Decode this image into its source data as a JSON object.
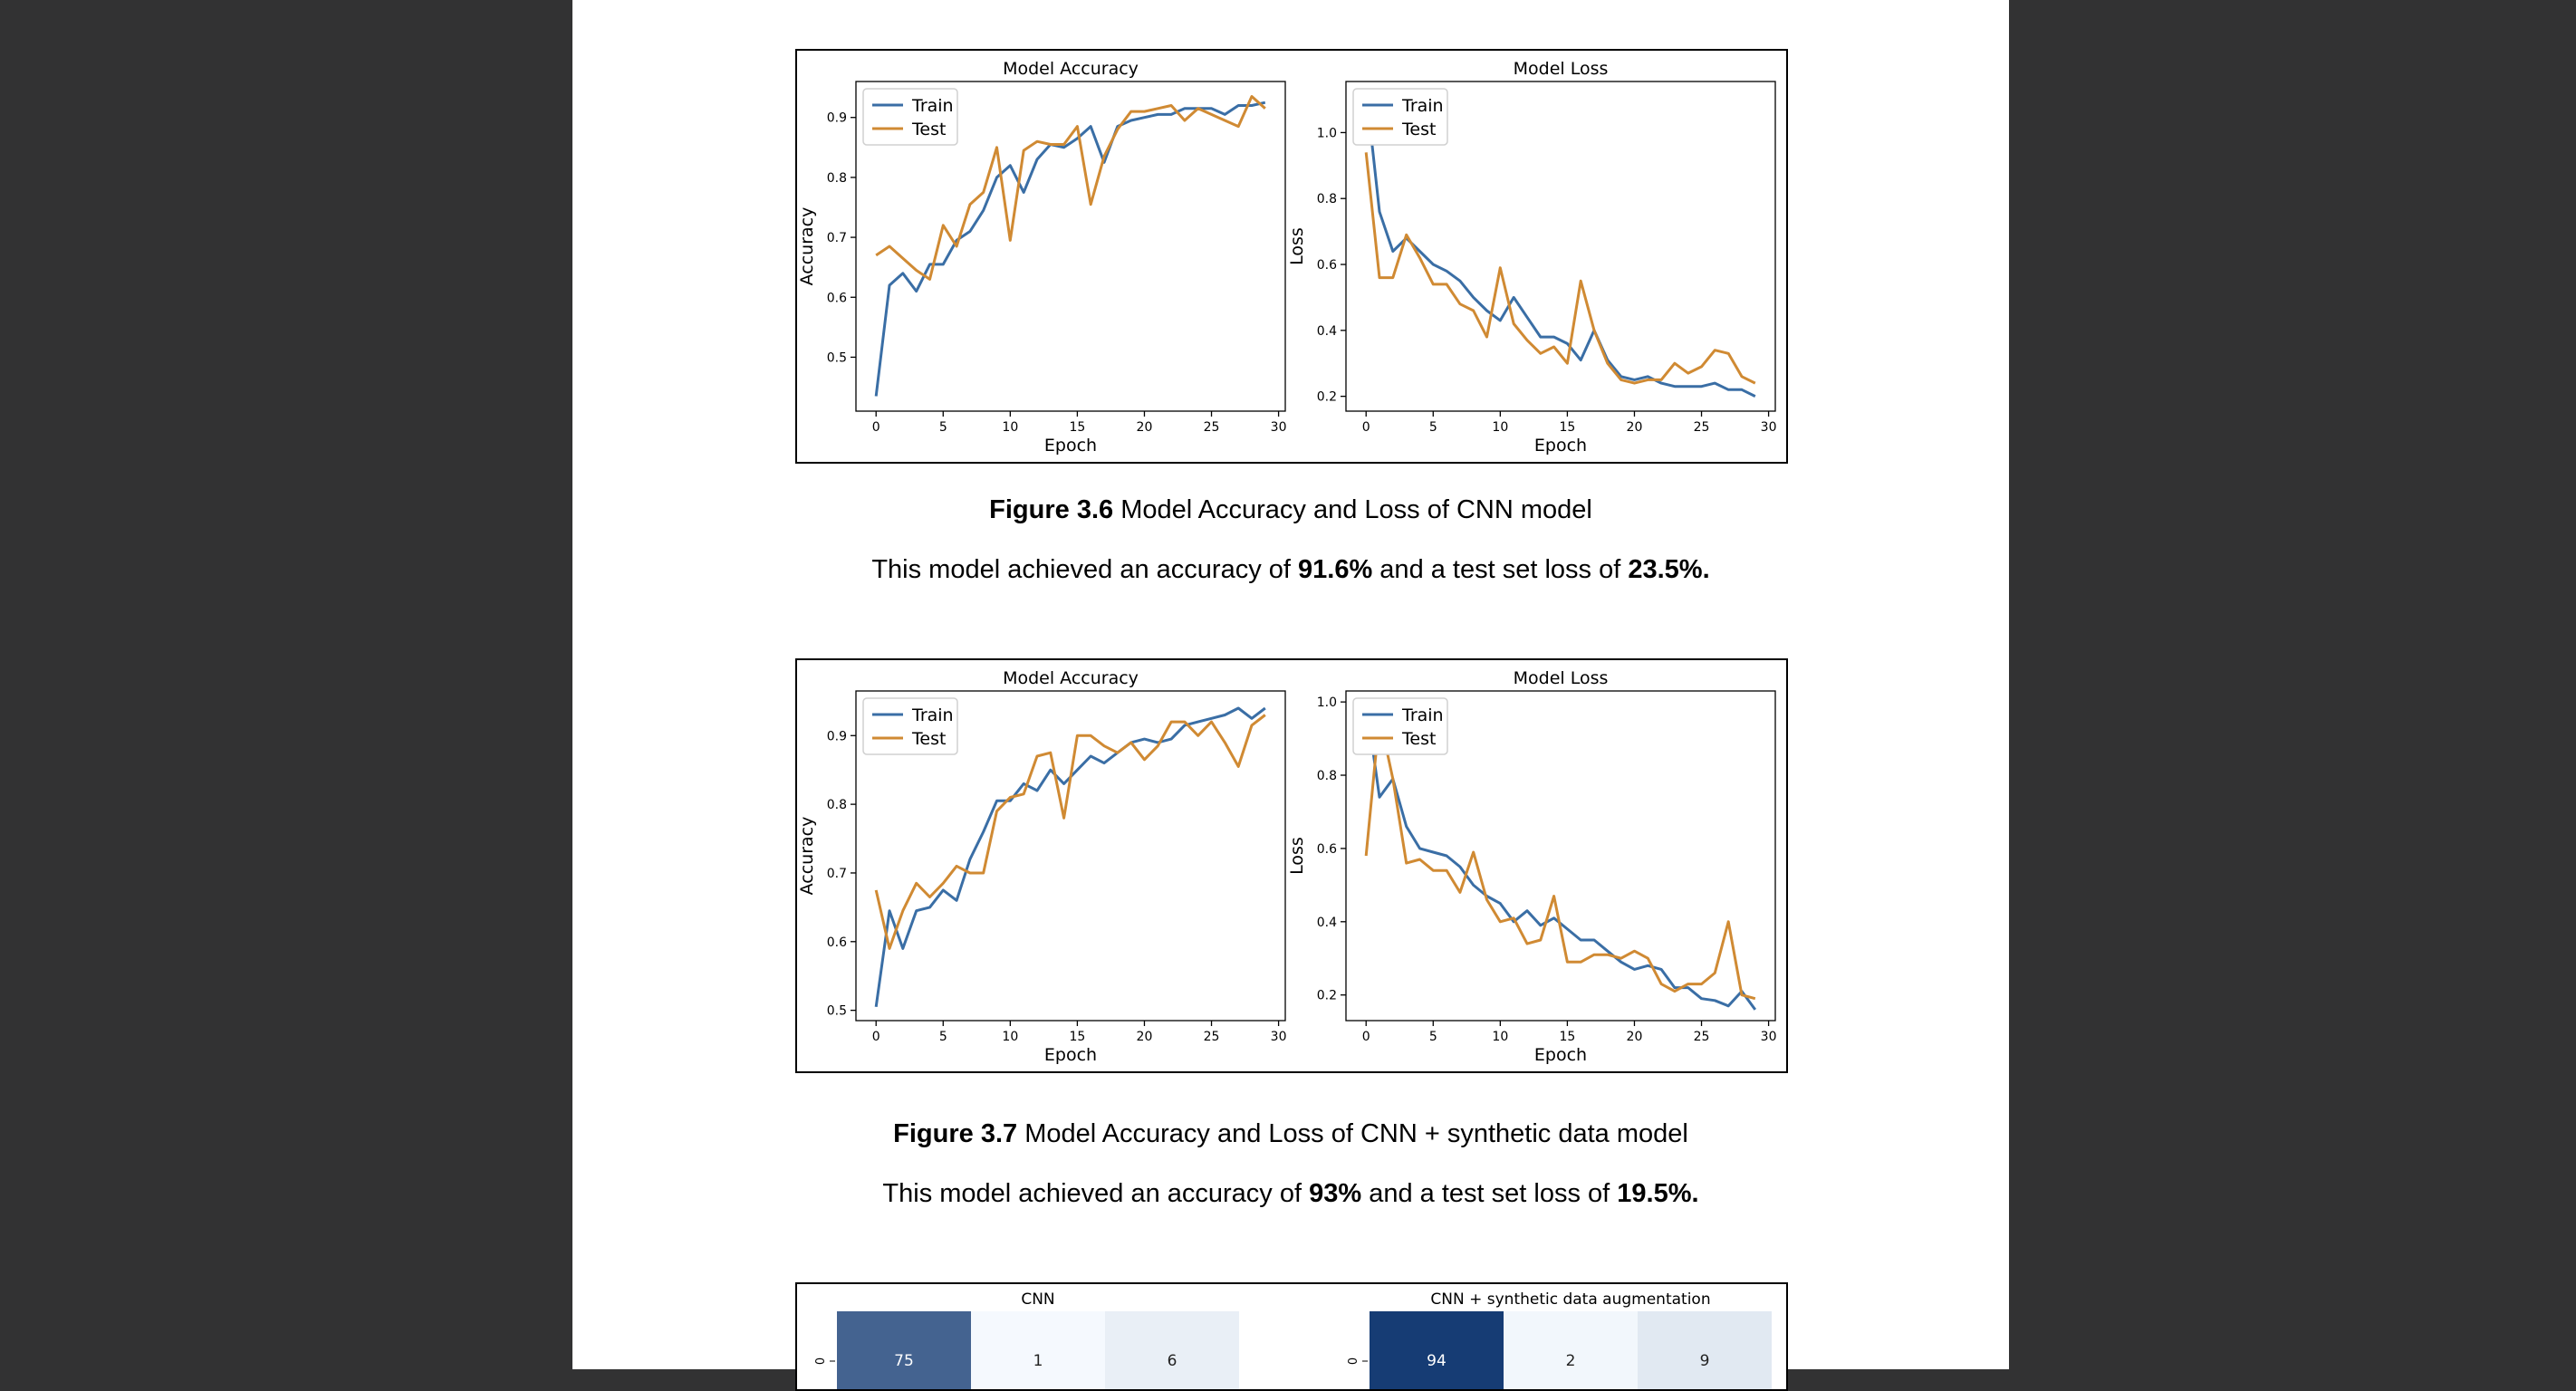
{
  "figures": [
    {
      "caption_bold": "Figure 3.6",
      "caption_text": " Model Accuracy and Loss of CNN model",
      "summary": {
        "pre": "This model achieved an accuracy of ",
        "accuracy": "91.6%",
        "mid": " and a test set loss of ",
        "loss": "23.5%."
      }
    },
    {
      "caption_bold": "Figure 3.7",
      "caption_text": " Model Accuracy and Loss of CNN + synthetic data model",
      "summary": {
        "pre": "This model achieved an accuracy of ",
        "accuracy": "93%",
        "mid": " and a test set loss of ",
        "loss": "19.5%."
      }
    }
  ],
  "chart_data": [
    {
      "type": "line",
      "title": "Model Accuracy",
      "xlabel": "Epoch",
      "ylabel": "Accuracy",
      "xlim": [
        -1.5,
        30.5
      ],
      "ylim": [
        0.41,
        0.96
      ],
      "xticks": [
        0,
        5,
        10,
        15,
        20,
        25,
        30
      ],
      "yticks": [
        0.5,
        0.6,
        0.7,
        0.8,
        0.9
      ],
      "legend": "upper-left",
      "x": [
        0,
        1,
        2,
        3,
        4,
        5,
        6,
        7,
        8,
        9,
        10,
        11,
        12,
        13,
        14,
        15,
        16,
        17,
        18,
        19,
        20,
        21,
        22,
        23,
        24,
        25,
        26,
        27,
        28,
        29
      ],
      "series": [
        {
          "name": "Train",
          "color": "#3a6ea5",
          "values": [
            0.435,
            0.62,
            0.64,
            0.61,
            0.655,
            0.655,
            0.695,
            0.71,
            0.745,
            0.8,
            0.82,
            0.775,
            0.83,
            0.855,
            0.85,
            0.865,
            0.885,
            0.825,
            0.885,
            0.895,
            0.9,
            0.905,
            0.905,
            0.915,
            0.915,
            0.915,
            0.905,
            0.92,
            0.92,
            0.925
          ]
        },
        {
          "name": "Test",
          "color": "#d08a33",
          "values": [
            0.67,
            0.685,
            0.665,
            0.645,
            0.63,
            0.72,
            0.685,
            0.755,
            0.775,
            0.85,
            0.695,
            0.845,
            0.86,
            0.855,
            0.855,
            0.885,
            0.755,
            0.835,
            0.88,
            0.91,
            0.91,
            0.915,
            0.92,
            0.895,
            0.915,
            0.905,
            0.895,
            0.885,
            0.935,
            0.915
          ]
        }
      ]
    },
    {
      "type": "line",
      "title": "Model Loss",
      "xlabel": "Epoch",
      "ylabel": "Loss",
      "xlim": [
        -1.5,
        30.5
      ],
      "ylim": [
        0.155,
        1.155
      ],
      "xticks": [
        0,
        5,
        10,
        15,
        20,
        25,
        30
      ],
      "yticks": [
        0.2,
        0.4,
        0.6,
        0.8,
        1.0
      ],
      "legend": "upper-left",
      "x": [
        0,
        1,
        2,
        3,
        4,
        5,
        6,
        7,
        8,
        9,
        10,
        11,
        12,
        13,
        14,
        15,
        16,
        17,
        18,
        19,
        20,
        21,
        22,
        23,
        24,
        25,
        26,
        27,
        28,
        29
      ],
      "series": [
        {
          "name": "Train",
          "color": "#3a6ea5",
          "values": [
            1.13,
            0.76,
            0.64,
            0.68,
            0.64,
            0.6,
            0.58,
            0.55,
            0.5,
            0.46,
            0.43,
            0.5,
            0.44,
            0.38,
            0.38,
            0.36,
            0.31,
            0.4,
            0.31,
            0.26,
            0.25,
            0.26,
            0.24,
            0.23,
            0.23,
            0.23,
            0.24,
            0.22,
            0.22,
            0.2
          ]
        },
        {
          "name": "Test",
          "color": "#d08a33",
          "values": [
            0.94,
            0.56,
            0.56,
            0.69,
            0.62,
            0.54,
            0.54,
            0.48,
            0.46,
            0.38,
            0.59,
            0.42,
            0.37,
            0.33,
            0.35,
            0.3,
            0.55,
            0.4,
            0.3,
            0.25,
            0.24,
            0.25,
            0.25,
            0.3,
            0.27,
            0.29,
            0.34,
            0.33,
            0.26,
            0.24
          ]
        }
      ]
    },
    {
      "type": "line",
      "title": "Model Accuracy",
      "xlabel": "Epoch",
      "ylabel": "Accuracy",
      "xlim": [
        -1.5,
        30.5
      ],
      "ylim": [
        0.485,
        0.965
      ],
      "xticks": [
        0,
        5,
        10,
        15,
        20,
        25,
        30
      ],
      "yticks": [
        0.5,
        0.6,
        0.7,
        0.8,
        0.9
      ],
      "legend": "upper-left",
      "x": [
        0,
        1,
        2,
        3,
        4,
        5,
        6,
        7,
        8,
        9,
        10,
        11,
        12,
        13,
        14,
        15,
        16,
        17,
        18,
        19,
        20,
        21,
        22,
        23,
        24,
        25,
        26,
        27,
        28,
        29
      ],
      "series": [
        {
          "name": "Train",
          "color": "#3a6ea5",
          "values": [
            0.505,
            0.645,
            0.59,
            0.645,
            0.65,
            0.675,
            0.66,
            0.72,
            0.76,
            0.805,
            0.805,
            0.83,
            0.82,
            0.85,
            0.83,
            0.85,
            0.87,
            0.86,
            0.875,
            0.89,
            0.895,
            0.89,
            0.895,
            0.915,
            0.92,
            0.925,
            0.93,
            0.94,
            0.925,
            0.94
          ]
        },
        {
          "name": "Test",
          "color": "#d08a33",
          "values": [
            0.675,
            0.59,
            0.645,
            0.685,
            0.665,
            0.685,
            0.71,
            0.7,
            0.7,
            0.79,
            0.81,
            0.815,
            0.87,
            0.875,
            0.78,
            0.9,
            0.9,
            0.885,
            0.875,
            0.89,
            0.865,
            0.885,
            0.92,
            0.92,
            0.9,
            0.92,
            0.89,
            0.855,
            0.915,
            0.93
          ]
        }
      ]
    },
    {
      "type": "line",
      "title": "Model Loss",
      "xlabel": "Epoch",
      "ylabel": "Loss",
      "xlim": [
        -1.5,
        30.5
      ],
      "ylim": [
        0.13,
        1.03
      ],
      "xticks": [
        0,
        5,
        10,
        15,
        20,
        25,
        30
      ],
      "yticks": [
        0.2,
        0.4,
        0.6,
        0.8,
        1.0
      ],
      "legend": "upper-left",
      "x": [
        0,
        1,
        2,
        3,
        4,
        5,
        6,
        7,
        8,
        9,
        10,
        11,
        12,
        13,
        14,
        15,
        16,
        17,
        18,
        19,
        20,
        21,
        22,
        23,
        24,
        25,
        26,
        27,
        28,
        29
      ],
      "series": [
        {
          "name": "Train",
          "color": "#3a6ea5",
          "values": [
            1.0,
            0.74,
            0.79,
            0.66,
            0.6,
            0.59,
            0.58,
            0.55,
            0.5,
            0.47,
            0.45,
            0.4,
            0.43,
            0.39,
            0.41,
            0.38,
            0.35,
            0.35,
            0.32,
            0.29,
            0.27,
            0.28,
            0.27,
            0.22,
            0.22,
            0.19,
            0.185,
            0.17,
            0.21,
            0.16
          ]
        },
        {
          "name": "Test",
          "color": "#d08a33",
          "values": [
            0.58,
            0.96,
            0.79,
            0.56,
            0.57,
            0.54,
            0.54,
            0.48,
            0.59,
            0.46,
            0.4,
            0.41,
            0.34,
            0.35,
            0.47,
            0.29,
            0.29,
            0.31,
            0.31,
            0.3,
            0.32,
            0.3,
            0.23,
            0.21,
            0.23,
            0.23,
            0.26,
            0.4,
            0.2,
            0.19
          ]
        }
      ]
    },
    {
      "type": "heatmap",
      "title": "CNN",
      "row_labels": [
        "0"
      ],
      "rows": [
        [
          75,
          1,
          6
        ]
      ]
    },
    {
      "type": "heatmap",
      "title": "CNN + synthetic data augmentation",
      "row_labels": [
        "0"
      ],
      "rows": [
        [
          94,
          2,
          9
        ]
      ]
    }
  ]
}
